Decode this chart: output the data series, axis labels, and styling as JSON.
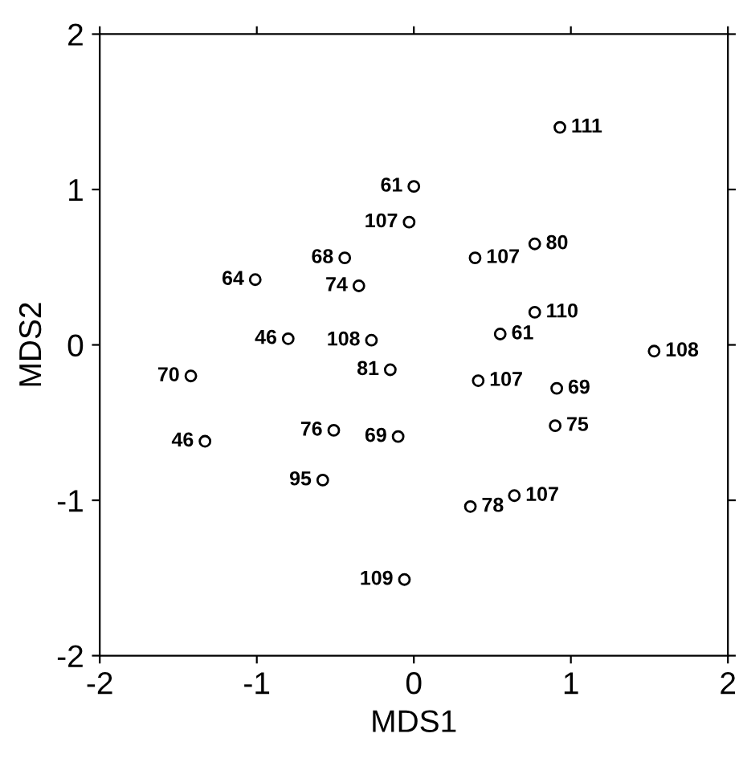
{
  "chart_data": {
    "type": "scatter",
    "xlabel": "MDS1",
    "ylabel": "MDS2",
    "xlim": [
      -2,
      2
    ],
    "ylim": [
      -2,
      2
    ],
    "xticks": [
      -2,
      -1,
      0,
      1,
      2
    ],
    "yticks": [
      -2,
      -1,
      0,
      1,
      2
    ],
    "grid": false,
    "marker": "circle",
    "color": "#000000",
    "x": [
      0.93,
      0.0,
      -0.03,
      -0.44,
      -1.01,
      -0.35,
      0.39,
      0.77,
      0.77,
      0.55,
      -0.8,
      -0.27,
      1.53,
      -0.15,
      -1.42,
      0.41,
      0.91,
      0.9,
      -1.33,
      -0.51,
      -0.1,
      -0.58,
      0.36,
      0.64,
      -0.06
    ],
    "values": [
      1.4,
      1.02,
      0.79,
      0.56,
      0.42,
      0.38,
      0.56,
      0.65,
      0.21,
      0.07,
      0.04,
      0.03,
      -0.04,
      -0.16,
      -0.2,
      -0.23,
      -0.28,
      -0.52,
      -0.62,
      -0.55,
      -0.59,
      -0.87,
      -1.04,
      -0.97,
      -1.51
    ],
    "annotations": [
      {
        "text": "111",
        "x": 0.93,
        "y": 1.4
      },
      {
        "text": "61",
        "x": 0.0,
        "y": 1.02
      },
      {
        "text": "107",
        "x": -0.03,
        "y": 0.79
      },
      {
        "text": "68",
        "x": -0.44,
        "y": 0.56
      },
      {
        "text": "64",
        "x": -1.01,
        "y": 0.42
      },
      {
        "text": "74",
        "x": -0.35,
        "y": 0.38
      },
      {
        "text": "107",
        "x": 0.39,
        "y": 0.56
      },
      {
        "text": "80",
        "x": 0.77,
        "y": 0.65
      },
      {
        "text": "110",
        "x": 0.77,
        "y": 0.21
      },
      {
        "text": "61",
        "x": 0.55,
        "y": 0.07
      },
      {
        "text": "46",
        "x": -0.8,
        "y": 0.04
      },
      {
        "text": "108",
        "x": -0.27,
        "y": 0.03
      },
      {
        "text": "108",
        "x": 1.53,
        "y": -0.04
      },
      {
        "text": "81",
        "x": -0.15,
        "y": -0.16
      },
      {
        "text": "70",
        "x": -1.42,
        "y": -0.2
      },
      {
        "text": "107",
        "x": 0.41,
        "y": -0.23
      },
      {
        "text": "69",
        "x": 0.91,
        "y": -0.28
      },
      {
        "text": "75",
        "x": 0.9,
        "y": -0.52
      },
      {
        "text": "46",
        "x": -1.33,
        "y": -0.62
      },
      {
        "text": "76",
        "x": -0.51,
        "y": -0.55
      },
      {
        "text": "69",
        "x": -0.1,
        "y": -0.59
      },
      {
        "text": "95",
        "x": -0.58,
        "y": -0.87
      },
      {
        "text": "78",
        "x": 0.36,
        "y": -1.04
      },
      {
        "text": "107",
        "x": 0.64,
        "y": -0.97
      },
      {
        "text": "109",
        "x": -0.06,
        "y": -1.51
      }
    ]
  }
}
